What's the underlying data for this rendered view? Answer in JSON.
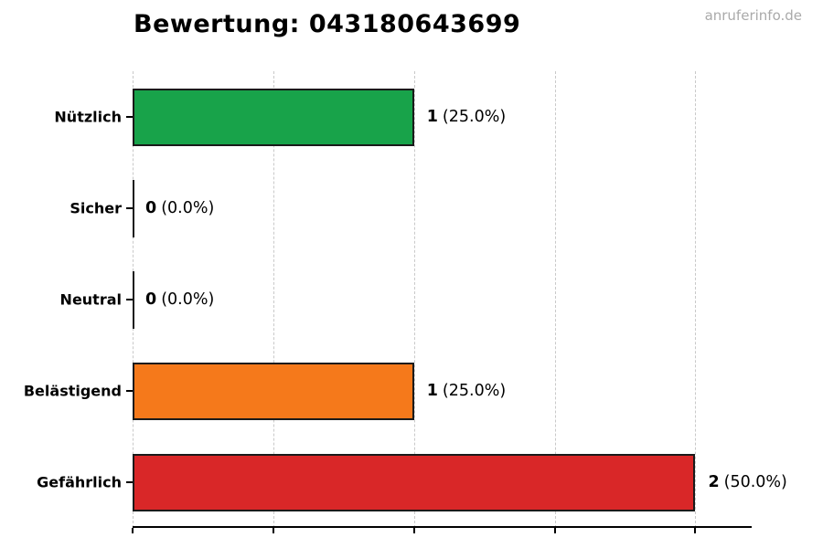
{
  "page": {
    "title": "Bewertung: 043180643699",
    "watermark": "anruferinfo.de"
  },
  "chart_data": {
    "type": "bar",
    "orientation": "horizontal",
    "title": "Bewertung: 043180643699",
    "categories": [
      "Nützlich",
      "Sicher",
      "Neutral",
      "Belästigend",
      "Gefährlich"
    ],
    "values": [
      1,
      0,
      0,
      1,
      2
    ],
    "percentages": [
      25.0,
      0.0,
      0.0,
      25.0,
      50.0
    ],
    "labels": [
      {
        "count": "1",
        "percent": "(25.0%)"
      },
      {
        "count": "0",
        "percent": "(0.0%)"
      },
      {
        "count": "0",
        "percent": "(0.0%)"
      },
      {
        "count": "1",
        "percent": "(25.0%)"
      },
      {
        "count": "2",
        "percent": "(50.0%)"
      }
    ],
    "bar_colors": [
      "#18a34a",
      "none",
      "none",
      "#f5791b",
      "#d92728"
    ],
    "bar_border_color": "#1a1a1a",
    "xlim": [
      0,
      2.2
    ],
    "x_ticks": [
      0,
      0.5,
      1.0,
      1.5,
      2.0
    ],
    "x_tick_labels_visible": false,
    "grid": {
      "axis": "x",
      "style": "dashed",
      "color": "#c9c9c9"
    },
    "legend": "none",
    "xlabel": "",
    "ylabel": ""
  }
}
